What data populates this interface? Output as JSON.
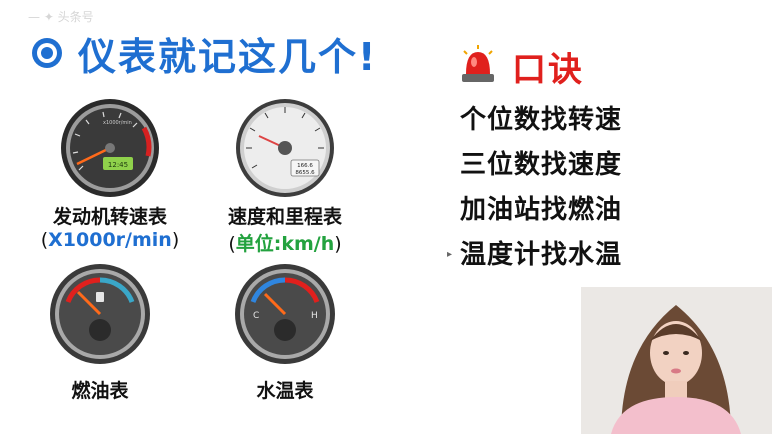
{
  "header": {
    "watermark": "— ✦ 头条号",
    "title": "仪表就记这几个!"
  },
  "gauges": [
    {
      "label": "发动机转速表",
      "sub_open": "(",
      "sub_value": "X1000r/min",
      "sub_close": ")",
      "inner_text": "12:45",
      "brand": "x1000r/min"
    },
    {
      "label": "速度和里程表",
      "sub_open": "(",
      "sub_value": "单位:km/h",
      "sub_close": ")",
      "odo1": "166.6",
      "odo2": "8655.6"
    },
    {
      "label": "燃油表"
    },
    {
      "label": "水温表",
      "mark_c": "C",
      "mark_h": "H"
    }
  ],
  "tips": {
    "title": "口诀",
    "rules": [
      "个位数找转速",
      "三位数找速度",
      "加油站找燃油",
      "温度计找水温"
    ]
  },
  "colors": {
    "accent_blue": "#1f6fd1",
    "accent_red": "#e0201d",
    "accent_green": "#23a23f"
  }
}
